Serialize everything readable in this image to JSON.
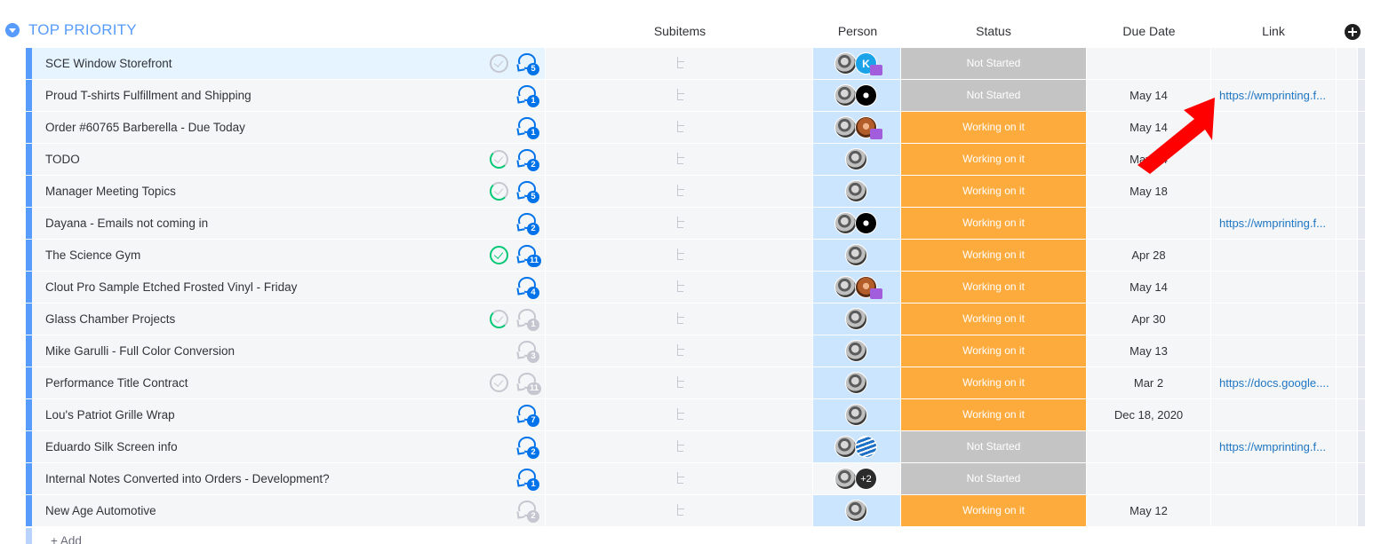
{
  "group": {
    "title": "TOP PRIORITY"
  },
  "columns": {
    "subitems": "Subitems",
    "person": "Person",
    "status": "Status",
    "due_date": "Due Date",
    "link": "Link"
  },
  "colors": {
    "group_accent": "#579bfc",
    "working_on_it": "#fdab3d",
    "not_started": "#c4c4c4",
    "link_text": "#1f76c2",
    "update_count": "#0073ea",
    "done_check": "#00c875",
    "annotation_arrow": "#ff0000"
  },
  "rows": [
    {
      "name": "SCE Window Storefront",
      "check": "grey",
      "updates": "5",
      "updates_active": true,
      "people": [
        "photo",
        "k"
      ],
      "initial": "K",
      "team": true,
      "status": "Not Started",
      "status_key": "ns",
      "due": "",
      "link": "",
      "selected": true
    },
    {
      "name": "Proud T-shirts Fulfillment and Shipping",
      "check": "",
      "updates": "1",
      "updates_active": true,
      "people": [
        "photo",
        "logo"
      ],
      "initial": "",
      "team": false,
      "status": "Not Started",
      "status_key": "ns",
      "due": "May 14",
      "link": "https://wmprinting.f..."
    },
    {
      "name": "Order #60765 Barberella - Due Today",
      "check": "",
      "updates": "1",
      "updates_active": true,
      "people": [
        "photo",
        "face"
      ],
      "initial": "",
      "team": true,
      "status": "Working on it",
      "status_key": "wk",
      "due": "May 14",
      "link": ""
    },
    {
      "name": "TODO",
      "check": "partial",
      "updates": "2",
      "updates_active": true,
      "people": [
        "photo"
      ],
      "initial": "",
      "team": false,
      "status": "Working on it",
      "status_key": "wk",
      "due": "May 14",
      "link": ""
    },
    {
      "name": "Manager Meeting Topics",
      "check": "partial",
      "updates": "5",
      "updates_active": true,
      "people": [
        "photo"
      ],
      "initial": "",
      "team": false,
      "status": "Working on it",
      "status_key": "wk",
      "due": "May 18",
      "link": ""
    },
    {
      "name": "Dayana - Emails not coming in",
      "check": "",
      "updates": "2",
      "updates_active": true,
      "people": [
        "photo",
        "logo"
      ],
      "initial": "",
      "team": false,
      "status": "Working on it",
      "status_key": "wk",
      "due": "",
      "link": "https://wmprinting.f..."
    },
    {
      "name": "The Science Gym",
      "check": "done",
      "updates": "11",
      "updates_active": true,
      "people": [
        "photo"
      ],
      "initial": "",
      "team": false,
      "status": "Working on it",
      "status_key": "wk",
      "due": "Apr 28",
      "link": ""
    },
    {
      "name": "Clout Pro Sample Etched Frosted Vinyl - Friday",
      "check": "",
      "updates": "4",
      "updates_active": true,
      "people": [
        "photo",
        "face"
      ],
      "initial": "",
      "team": true,
      "status": "Working on it",
      "status_key": "wk",
      "due": "May 14",
      "link": ""
    },
    {
      "name": "Glass Chamber Projects",
      "check": "partial",
      "updates": "1",
      "updates_active": false,
      "people": [
        "photo"
      ],
      "initial": "",
      "team": false,
      "status": "Working on it",
      "status_key": "wk",
      "due": "Apr 30",
      "link": ""
    },
    {
      "name": "Mike Garulli - Full Color Conversion",
      "check": "",
      "updates": "3",
      "updates_active": false,
      "people": [
        "photo"
      ],
      "initial": "",
      "team": false,
      "status": "Working on it",
      "status_key": "wk",
      "due": "May 13",
      "link": ""
    },
    {
      "name": "Performance Title Contract",
      "check": "grey",
      "updates": "11",
      "updates_active": false,
      "people": [
        "photo"
      ],
      "initial": "",
      "team": false,
      "status": "Working on it",
      "status_key": "wk",
      "due": "Mar 2",
      "link": "https://docs.google...."
    },
    {
      "name": "Lou's Patriot Grille Wrap",
      "check": "",
      "updates": "7",
      "updates_active": true,
      "people": [
        "photo"
      ],
      "initial": "",
      "team": false,
      "status": "Working on it",
      "status_key": "wk",
      "due": "Dec 18, 2020",
      "link": ""
    },
    {
      "name": "Eduardo Silk Screen info",
      "check": "",
      "updates": "2",
      "updates_active": true,
      "people": [
        "photo",
        "globe"
      ],
      "initial": "",
      "team": false,
      "status": "Not Started",
      "status_key": "ns",
      "due": "",
      "link": "https://wmprinting.f..."
    },
    {
      "name": "Internal Notes Converted into Orders - Development?",
      "check": "",
      "updates": "1",
      "updates_active": true,
      "people": [
        "photo",
        "plus"
      ],
      "initial": "+2",
      "team": false,
      "status": "Not Started",
      "status_key": "ns",
      "due": "",
      "link": "",
      "plain_person": true
    },
    {
      "name": "New Age Automotive",
      "check": "",
      "updates": "2",
      "updates_active": false,
      "people": [
        "photo"
      ],
      "initial": "",
      "team": false,
      "status": "Working on it",
      "status_key": "wk",
      "due": "May 12",
      "link": ""
    }
  ],
  "add_row": {
    "label": "+ Add"
  },
  "icons": {
    "group_toggle": "chevron-down-icon",
    "add_column": "plus-circle-icon",
    "completion": "check-circle-icon",
    "updates": "chat-bubble-icon",
    "subitems": "subitems-tree-icon",
    "annotation": "red-arrow-icon"
  }
}
